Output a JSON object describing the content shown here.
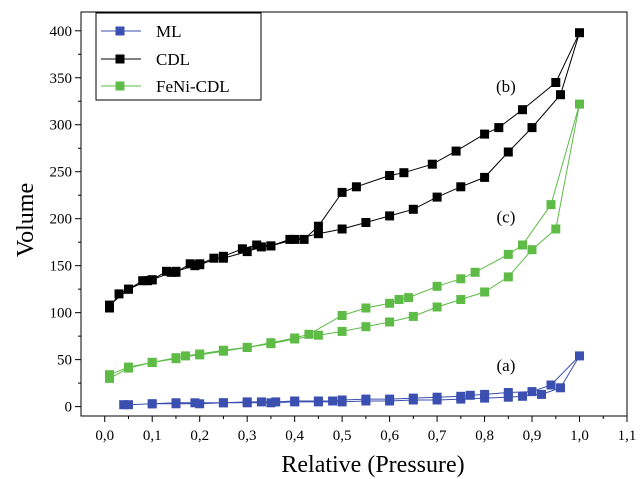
{
  "chart_data": {
    "type": "line",
    "xlabel": "Relative (Pressure)",
    "ylabel": "Volume",
    "xlim": [
      -0.05,
      1.1
    ],
    "ylim": [
      -10,
      420
    ],
    "x_ticks": [
      "0,0",
      "0,1",
      "0,2",
      "0,3",
      "0,4",
      "0,5",
      "0,6",
      "0,7",
      "0,8",
      "0,9",
      "1,0",
      "1,1"
    ],
    "x_tick_values": [
      0.0,
      0.1,
      0.2,
      0.3,
      0.4,
      0.5,
      0.6,
      0.7,
      0.8,
      0.9,
      1.0,
      1.1
    ],
    "y_ticks": [
      "0",
      "50",
      "100",
      "150",
      "200",
      "250",
      "300",
      "350",
      "400"
    ],
    "y_tick_values": [
      0,
      50,
      100,
      150,
      200,
      250,
      300,
      350,
      400
    ],
    "legend_position": "top-left",
    "series": [
      {
        "name": "ML",
        "color": "#3a4fb0",
        "marker": "square",
        "x": [
          0.04,
          0.05,
          0.1,
          0.15,
          0.2,
          0.25,
          0.3,
          0.35,
          0.4,
          0.45,
          0.5,
          0.55,
          0.6,
          0.65,
          0.7,
          0.75,
          0.8,
          0.85,
          0.88,
          0.92,
          0.96,
          1.0,
          0.94,
          0.9,
          0.85,
          0.8,
          0.77,
          0.75,
          0.7,
          0.65,
          0.6,
          0.55,
          0.5,
          0.48,
          0.45,
          0.4,
          0.36,
          0.33,
          0.3,
          0.25,
          0.19,
          0.15,
          0.1
        ],
        "values": [
          2,
          2,
          3,
          3,
          3,
          4,
          4,
          4,
          5,
          5,
          5,
          6,
          6,
          7,
          7,
          8,
          9,
          10,
          11,
          13,
          20,
          54,
          23,
          16,
          15,
          13,
          12,
          11,
          10,
          9,
          8,
          8,
          7,
          6,
          6,
          6,
          5,
          5,
          5,
          4,
          4,
          4,
          3
        ]
      },
      {
        "name": "CDL",
        "color": "#000000",
        "marker": "square",
        "x": [
          0.01,
          0.03,
          0.05,
          0.09,
          0.1,
          0.14,
          0.15,
          0.19,
          0.2,
          0.23,
          0.25,
          0.3,
          0.33,
          0.35,
          0.4,
          0.45,
          0.5,
          0.55,
          0.6,
          0.65,
          0.7,
          0.75,
          0.8,
          0.85,
          0.9,
          0.96,
          1.0,
          0.95,
          0.88,
          0.83,
          0.8,
          0.74,
          0.69,
          0.63,
          0.6,
          0.53,
          0.5,
          0.45,
          0.42,
          0.39,
          0.35,
          0.32,
          0.29,
          0.25,
          0.2,
          0.18,
          0.15,
          0.13,
          0.1,
          0.08,
          0.05,
          0.01
        ],
        "values": [
          105,
          120,
          125,
          134,
          135,
          143,
          144,
          150,
          152,
          158,
          158,
          165,
          170,
          171,
          178,
          184,
          189,
          196,
          203,
          210,
          223,
          234,
          244,
          271,
          297,
          332,
          398,
          345,
          316,
          297,
          290,
          272,
          258,
          249,
          246,
          234,
          228,
          192,
          178,
          178,
          171,
          172,
          168,
          160,
          151,
          152,
          143,
          144,
          135,
          134,
          125,
          108
        ]
      },
      {
        "name": "FeNi-CDL",
        "color": "#5dbb46",
        "marker": "square",
        "x": [
          0.01,
          0.05,
          0.1,
          0.15,
          0.2,
          0.25,
          0.3,
          0.35,
          0.4,
          0.45,
          0.5,
          0.55,
          0.6,
          0.65,
          0.7,
          0.75,
          0.8,
          0.85,
          0.9,
          0.95,
          1.0,
          0.94,
          0.88,
          0.85,
          0.78,
          0.75,
          0.7,
          0.64,
          0.62,
          0.6,
          0.55,
          0.5,
          0.43,
          0.4,
          0.35,
          0.3,
          0.25,
          0.2,
          0.17,
          0.15,
          0.1,
          0.05,
          0.01
        ],
        "values": [
          30,
          41,
          47,
          52,
          55,
          59,
          63,
          67,
          72,
          76,
          80,
          85,
          90,
          96,
          106,
          114,
          122,
          138,
          167,
          189,
          322,
          215,
          172,
          162,
          143,
          136,
          128,
          116,
          114,
          110,
          105,
          97,
          77,
          73,
          68,
          63,
          60,
          56,
          54,
          51,
          47,
          42,
          34
        ]
      }
    ],
    "annotations": [
      {
        "text": "(b)",
        "x": 0.845,
        "y": 335
      },
      {
        "text": "(c)",
        "x": 0.845,
        "y": 196
      },
      {
        "text": "(a)",
        "x": 0.845,
        "y": 38
      }
    ]
  }
}
